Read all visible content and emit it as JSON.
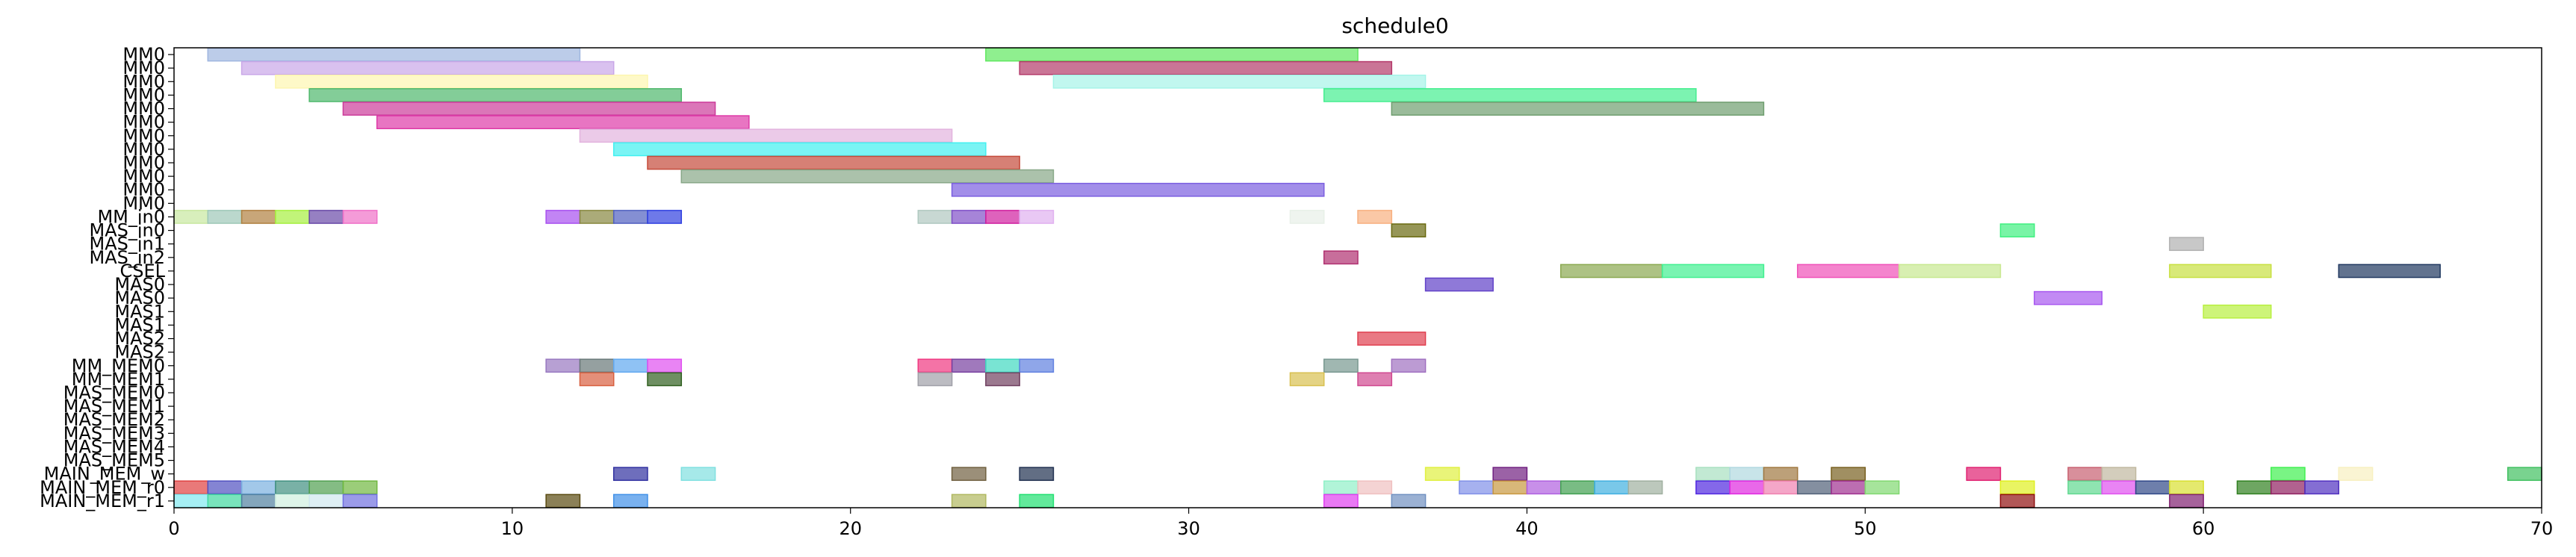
{
  "chart_data": {
    "type": "gantt",
    "title": "schedule0",
    "xlim": [
      0,
      70
    ],
    "xticks": [
      "0",
      "10",
      "20",
      "30",
      "40",
      "50",
      "60",
      "70"
    ],
    "grid": false,
    "rows": [
      "MM0",
      "MM0",
      "MM0",
      "MM0",
      "MM0",
      "MM0",
      "MM0",
      "MM0",
      "MM0",
      "MM0",
      "MM0",
      "MM0",
      "MM_in0",
      "MAS_in0",
      "MAS_in1",
      "MAS_in2",
      "CSEL",
      "MAS0",
      "MAS0",
      "MAS1",
      "MAS1",
      "MAS2",
      "MAS2",
      "MM_MEM0",
      "MM_MEM1",
      "MAS_MEM0",
      "MAS_MEM1",
      "MAS_MEM2",
      "MAS_MEM3",
      "MAS_MEM4",
      "MAS_MEM5",
      "MAIN_MEM_w",
      "MAIN_MEM_r0",
      "MAIN_MEM_r1"
    ],
    "bars": [
      {
        "row": 0,
        "start": 1,
        "end": 12,
        "color": "#9fb6e0"
      },
      {
        "row": 0,
        "start": 24,
        "end": 35,
        "color": "#5fe85f"
      },
      {
        "row": 1,
        "start": 2,
        "end": 13,
        "color": "#c9a7e8"
      },
      {
        "row": 1,
        "start": 25,
        "end": 36,
        "color": "#b43a6a"
      },
      {
        "row": 2,
        "start": 3,
        "end": 14,
        "color": "#fdf6b0"
      },
      {
        "row": 2,
        "start": 26,
        "end": 37,
        "color": "#a6f4e8"
      },
      {
        "row": 3,
        "start": 4,
        "end": 15,
        "color": "#4fb86c"
      },
      {
        "row": 3,
        "start": 34,
        "end": 45,
        "color": "#45ee90"
      },
      {
        "row": 4,
        "start": 5,
        "end": 16,
        "color": "#cc3c9a"
      },
      {
        "row": 4,
        "start": 36,
        "end": 47,
        "color": "#6f9e6f"
      },
      {
        "row": 5,
        "start": 6,
        "end": 17,
        "color": "#de3aa8"
      },
      {
        "row": 6,
        "start": 12,
        "end": 23,
        "color": "#e2b3de"
      },
      {
        "row": 7,
        "start": 13,
        "end": 24,
        "color": "#42f0f0"
      },
      {
        "row": 8,
        "start": 14,
        "end": 25,
        "color": "#c54a3a"
      },
      {
        "row": 9,
        "start": 15,
        "end": 26,
        "color": "#88a888"
      },
      {
        "row": 10,
        "start": 23,
        "end": 34,
        "color": "#7b5ee0"
      },
      {
        "row": 12,
        "start": 0,
        "end": 1,
        "color": "#c8e8a0"
      },
      {
        "row": 12,
        "start": 1,
        "end": 2,
        "color": "#9ec8b8"
      },
      {
        "row": 12,
        "start": 2,
        "end": 3,
        "color": "#b08040"
      },
      {
        "row": 12,
        "start": 3,
        "end": 4,
        "color": "#a6f040"
      },
      {
        "row": 12,
        "start": 4,
        "end": 5,
        "color": "#6a4aa8"
      },
      {
        "row": 12,
        "start": 5,
        "end": 6,
        "color": "#f070c8"
      },
      {
        "row": 12,
        "start": 11,
        "end": 12,
        "color": "#a850f0"
      },
      {
        "row": 12,
        "start": 12,
        "end": 13,
        "color": "#888840"
      },
      {
        "row": 12,
        "start": 13,
        "end": 14,
        "color": "#5060c0"
      },
      {
        "row": 12,
        "start": 14,
        "end": 15,
        "color": "#3040e0"
      },
      {
        "row": 12,
        "start": 22,
        "end": 23,
        "color": "#b0c8c0"
      },
      {
        "row": 12,
        "start": 23,
        "end": 24,
        "color": "#8050c8"
      },
      {
        "row": 12,
        "start": 24,
        "end": 25,
        "color": "#d020a0"
      },
      {
        "row": 12,
        "start": 25,
        "end": 26,
        "color": "#e0b0f0"
      },
      {
        "row": 12,
        "start": 33,
        "end": 34,
        "color": "#e8f0e8"
      },
      {
        "row": 12,
        "start": 35,
        "end": 36,
        "color": "#f8b080"
      },
      {
        "row": 13,
        "start": 36,
        "end": 37,
        "color": "#6a6a10"
      },
      {
        "row": 13,
        "start": 54,
        "end": 55,
        "color": "#40f080"
      },
      {
        "row": 14,
        "start": 59,
        "end": 60,
        "color": "#b0b0b0"
      },
      {
        "row": 15,
        "start": 34,
        "end": 35,
        "color": "#b03070"
      },
      {
        "row": 16,
        "start": 41,
        "end": 44,
        "color": "#8aa850"
      },
      {
        "row": 16,
        "start": 44,
        "end": 47,
        "color": "#40f090"
      },
      {
        "row": 16,
        "start": 48,
        "end": 51,
        "color": "#f050b8"
      },
      {
        "row": 16,
        "start": 51,
        "end": 54,
        "color": "#c8e890"
      },
      {
        "row": 16,
        "start": 59,
        "end": 62,
        "color": "#c8e040"
      },
      {
        "row": 16,
        "start": 64,
        "end": 67,
        "color": "#203860"
      },
      {
        "row": 17,
        "start": 37,
        "end": 39,
        "color": "#6040c8"
      },
      {
        "row": 18,
        "start": 55,
        "end": 57,
        "color": "#a858f0"
      },
      {
        "row": 19,
        "start": 60,
        "end": 62,
        "color": "#b8f040"
      },
      {
        "row": 21,
        "start": 35,
        "end": 37,
        "color": "#e04050"
      },
      {
        "row": 23,
        "start": 11,
        "end": 12,
        "color": "#9878c0"
      },
      {
        "row": 23,
        "start": 12,
        "end": 13,
        "color": "#687878"
      },
      {
        "row": 23,
        "start": 13,
        "end": 14,
        "color": "#60a8f0"
      },
      {
        "row": 23,
        "start": 14,
        "end": 15,
        "color": "#e050f0"
      },
      {
        "row": 23,
        "start": 22,
        "end": 23,
        "color": "#f03880"
      },
      {
        "row": 23,
        "start": 23,
        "end": 24,
        "color": "#7840a0"
      },
      {
        "row": 23,
        "start": 24,
        "end": 25,
        "color": "#40d8c0"
      },
      {
        "row": 23,
        "start": 25,
        "end": 26,
        "color": "#6080e0"
      },
      {
        "row": 23,
        "start": 34,
        "end": 35,
        "color": "#789890"
      },
      {
        "row": 23,
        "start": 36,
        "end": 37,
        "color": "#a070c0"
      },
      {
        "row": 24,
        "start": 12,
        "end": 13,
        "color": "#d86040"
      },
      {
        "row": 24,
        "start": 14,
        "end": 15,
        "color": "#306020"
      },
      {
        "row": 24,
        "start": 22,
        "end": 23,
        "color": "#a0a0a8"
      },
      {
        "row": 24,
        "start": 24,
        "end": 25,
        "color": "#704060"
      },
      {
        "row": 24,
        "start": 33,
        "end": 34,
        "color": "#d8c050"
      },
      {
        "row": 24,
        "start": 35,
        "end": 36,
        "color": "#d04890"
      },
      {
        "row": 31,
        "start": 13,
        "end": 14,
        "color": "#3030a0"
      },
      {
        "row": 31,
        "start": 15,
        "end": 16,
        "color": "#80e0e0"
      },
      {
        "row": 31,
        "start": 23,
        "end": 24,
        "color": "#706040"
      },
      {
        "row": 31,
        "start": 25,
        "end": 26,
        "color": "#203050"
      },
      {
        "row": 31,
        "start": 37,
        "end": 38,
        "color": "#e0f040"
      },
      {
        "row": 31,
        "start": 39,
        "end": 40,
        "color": "#702080"
      },
      {
        "row": 31,
        "start": 45,
        "end": 46,
        "color": "#a8e0c0"
      },
      {
        "row": 31,
        "start": 46,
        "end": 47,
        "color": "#b0d8e0"
      },
      {
        "row": 31,
        "start": 47,
        "end": 48,
        "color": "#a07840"
      },
      {
        "row": 31,
        "start": 49,
        "end": 50,
        "color": "#786020"
      },
      {
        "row": 31,
        "start": 53,
        "end": 54,
        "color": "#e02070"
      },
      {
        "row": 31,
        "start": 56,
        "end": 57,
        "color": "#c86070"
      },
      {
        "row": 31,
        "start": 57,
        "end": 58,
        "color": "#c0b8a0"
      },
      {
        "row": 31,
        "start": 62,
        "end": 63,
        "color": "#40f050"
      },
      {
        "row": 31,
        "start": 64,
        "end": 65,
        "color": "#f8f0c0"
      },
      {
        "row": 31,
        "start": 69,
        "end": 70,
        "color": "#40c060"
      },
      {
        "row": 32,
        "start": 0,
        "end": 1,
        "color": "#e04040"
      },
      {
        "row": 32,
        "start": 1,
        "end": 2,
        "color": "#5050c0"
      },
      {
        "row": 32,
        "start": 2,
        "end": 3,
        "color": "#7ab0e0"
      },
      {
        "row": 32,
        "start": 3,
        "end": 4,
        "color": "#409080"
      },
      {
        "row": 32,
        "start": 4,
        "end": 5,
        "color": "#50a050"
      },
      {
        "row": 32,
        "start": 5,
        "end": 6,
        "color": "#70b840"
      },
      {
        "row": 32,
        "start": 34,
        "end": 35,
        "color": "#90f0c8"
      },
      {
        "row": 32,
        "start": 35,
        "end": 36,
        "color": "#f0c0c0"
      },
      {
        "row": 32,
        "start": 38,
        "end": 39,
        "color": "#8090e8"
      },
      {
        "row": 32,
        "start": 39,
        "end": 40,
        "color": "#c89840"
      },
      {
        "row": 32,
        "start": 40,
        "end": 41,
        "color": "#b060e0"
      },
      {
        "row": 32,
        "start": 41,
        "end": 42,
        "color": "#40a050"
      },
      {
        "row": 32,
        "start": 42,
        "end": 43,
        "color": "#40b0e0"
      },
      {
        "row": 32,
        "start": 43,
        "end": 44,
        "color": "#a0b0a0"
      },
      {
        "row": 32,
        "start": 45,
        "end": 46,
        "color": "#5028e0"
      },
      {
        "row": 32,
        "start": 46,
        "end": 47,
        "color": "#e028e0"
      },
      {
        "row": 32,
        "start": 47,
        "end": 48,
        "color": "#f080b0"
      },
      {
        "row": 32,
        "start": 48,
        "end": 49,
        "color": "#506078"
      },
      {
        "row": 32,
        "start": 49,
        "end": 50,
        "color": "#a03090"
      },
      {
        "row": 32,
        "start": 50,
        "end": 51,
        "color": "#80d870"
      },
      {
        "row": 32,
        "start": 54,
        "end": 55,
        "color": "#e0f020"
      },
      {
        "row": 32,
        "start": 56,
        "end": 57,
        "color": "#60d890"
      },
      {
        "row": 32,
        "start": 57,
        "end": 58,
        "color": "#e050f0"
      },
      {
        "row": 32,
        "start": 58,
        "end": 59,
        "color": "#304888"
      },
      {
        "row": 32,
        "start": 59,
        "end": 60,
        "color": "#d8e030"
      },
      {
        "row": 32,
        "start": 61,
        "end": 62,
        "color": "#308020"
      },
      {
        "row": 32,
        "start": 62,
        "end": 63,
        "color": "#902060"
      },
      {
        "row": 32,
        "start": 63,
        "end": 64,
        "color": "#5030c0"
      },
      {
        "row": 33,
        "start": 0,
        "end": 1,
        "color": "#80e8f0"
      },
      {
        "row": 33,
        "start": 1,
        "end": 2,
        "color": "#40d8a0"
      },
      {
        "row": 33,
        "start": 2,
        "end": 3,
        "color": "#5080a0"
      },
      {
        "row": 33,
        "start": 3,
        "end": 4,
        "color": "#d0f0e0"
      },
      {
        "row": 33,
        "start": 4,
        "end": 5,
        "color": "#d0e8f0"
      },
      {
        "row": 33,
        "start": 5,
        "end": 6,
        "color": "#7070e0"
      },
      {
        "row": 33,
        "start": 11,
        "end": 12,
        "color": "#5a4a10"
      },
      {
        "row": 33,
        "start": 13,
        "end": 14,
        "color": "#4090e8"
      },
      {
        "row": 33,
        "start": 23,
        "end": 24,
        "color": "#b0b860"
      },
      {
        "row": 33,
        "start": 25,
        "end": 26,
        "color": "#20e070"
      },
      {
        "row": 33,
        "start": 34,
        "end": 35,
        "color": "#e040f0"
      },
      {
        "row": 33,
        "start": 36,
        "end": 37,
        "color": "#7090c0"
      },
      {
        "row": 33,
        "start": 54,
        "end": 55,
        "color": "#901010"
      },
      {
        "row": 33,
        "start": 59,
        "end": 60,
        "color": "#802070"
      }
    ]
  }
}
